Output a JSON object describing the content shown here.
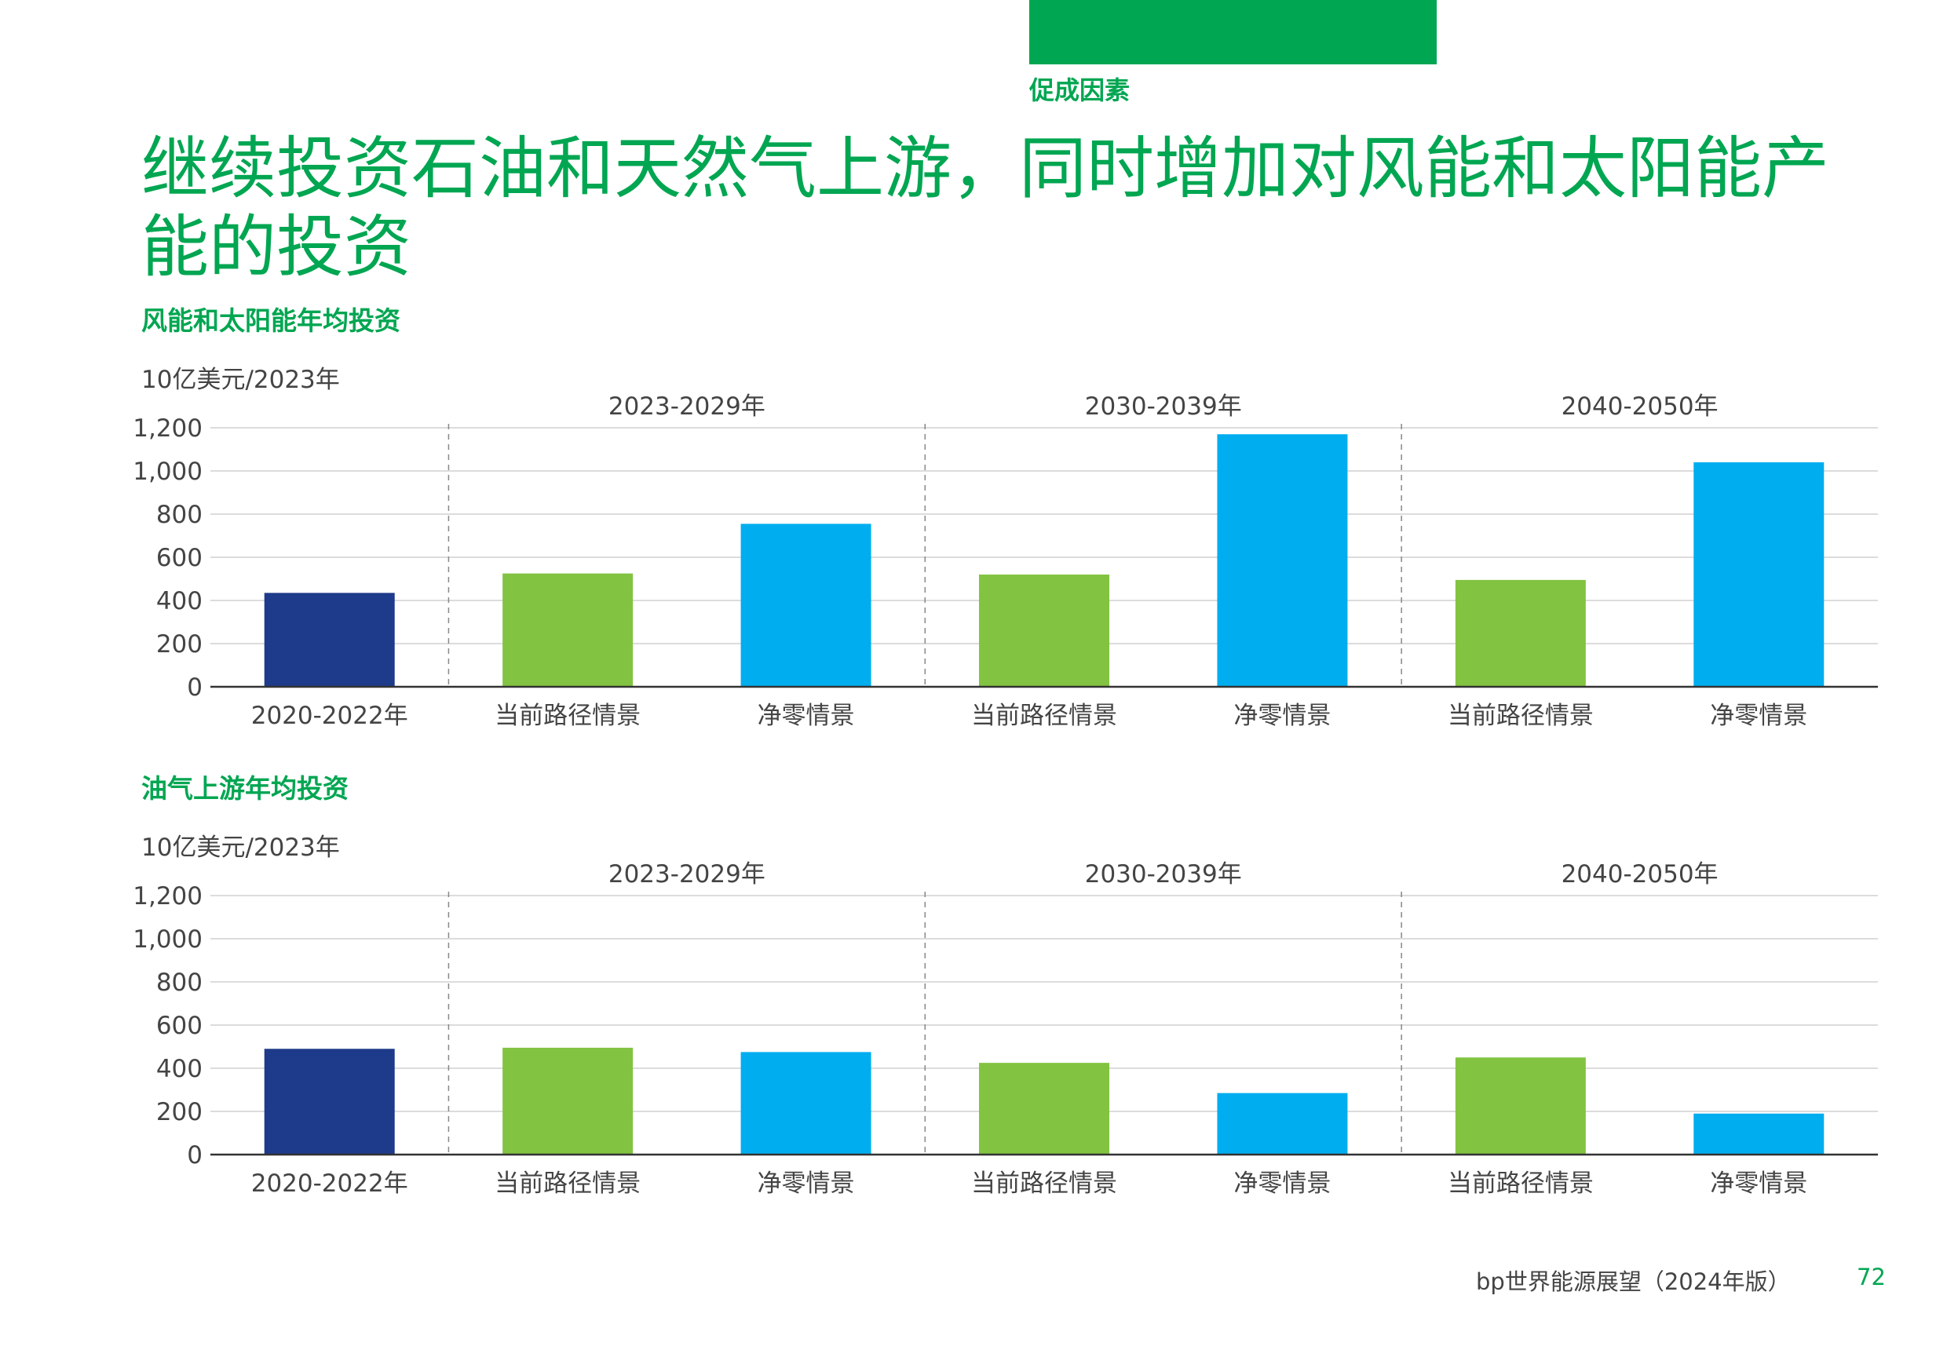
{
  "header": {
    "section_label": "促成因素",
    "title": "继续投资石油和天然气上游，同时增加对风能和太阳能产能的投资",
    "accent_color": "#00a651"
  },
  "footer": {
    "publication": "bp世界能源展望（2024年版）",
    "page_number": "72"
  },
  "colors": {
    "historical": "#1e3a8a",
    "current_trajectory": "#82c341",
    "net_zero": "#00adef"
  },
  "chart_data": [
    {
      "type": "bar",
      "title": "风能和太阳能年均投资",
      "ylabel": "10亿美元/2023年",
      "ylim": [
        0,
        1200
      ],
      "yticks": [
        "0",
        "200",
        "400",
        "600",
        "800",
        "1,000",
        "1,200"
      ],
      "period_labels": [
        "2023-2029年",
        "2030-2039年",
        "2040-2050年"
      ],
      "categories": [
        "2020-2022年",
        "当前路径情景",
        "净零情景",
        "当前路径情景",
        "净零情景",
        "当前路径情景",
        "净零情景"
      ],
      "values": [
        435,
        525,
        755,
        520,
        1170,
        495,
        1040
      ],
      "series_kind": [
        "historical",
        "current_trajectory",
        "net_zero",
        "current_trajectory",
        "net_zero",
        "current_trajectory",
        "net_zero"
      ]
    },
    {
      "type": "bar",
      "title": "油气上游年均投资",
      "ylabel": "10亿美元/2023年",
      "ylim": [
        0,
        1200
      ],
      "yticks": [
        "0",
        "200",
        "400",
        "600",
        "800",
        "1,000",
        "1,200"
      ],
      "period_labels": [
        "2023-2029年",
        "2030-2039年",
        "2040-2050年"
      ],
      "categories": [
        "2020-2022年",
        "当前路径情景",
        "净零情景",
        "当前路径情景",
        "净零情景",
        "当前路径情景",
        "净零情景"
      ],
      "values": [
        490,
        495,
        475,
        425,
        285,
        450,
        190
      ],
      "series_kind": [
        "historical",
        "current_trajectory",
        "net_zero",
        "current_trajectory",
        "net_zero",
        "current_trajectory",
        "net_zero"
      ]
    }
  ]
}
